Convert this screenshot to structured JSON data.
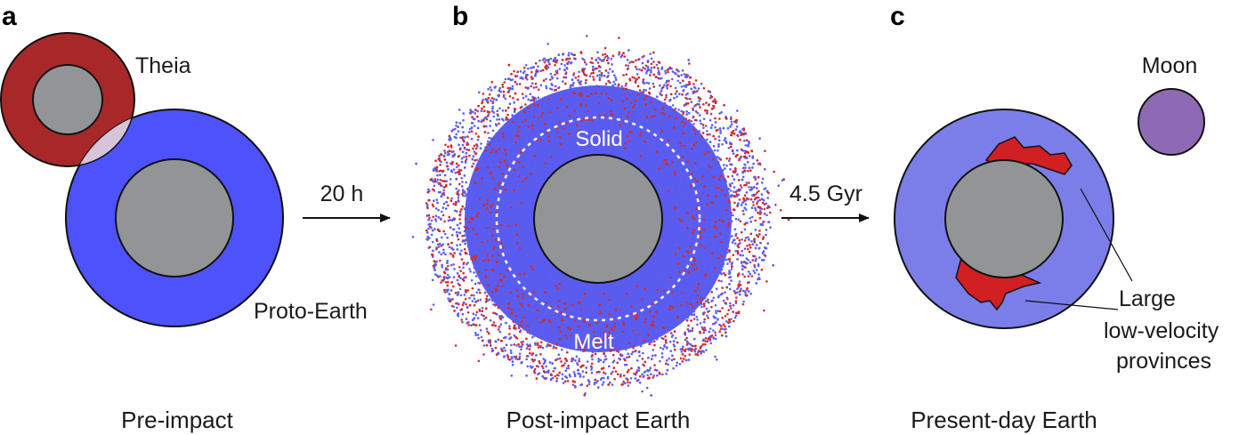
{
  "panels": {
    "a": {
      "letter": "a",
      "caption": "Pre-impact",
      "impactor_label": "Theia",
      "target_label": "Proto-Earth"
    },
    "b": {
      "letter": "b",
      "caption": "Post-impact Earth",
      "inner_label": "Solid",
      "outer_label": "Melt"
    },
    "c": {
      "letter": "c",
      "caption": "Present-day Earth",
      "moon_label": "Moon",
      "llvp_label_lines": [
        "Large",
        "low-velocity",
        "provinces"
      ]
    }
  },
  "arrows": {
    "ab": "20 h",
    "bc": "4.5 Gyr"
  },
  "colors": {
    "theia_mantle": "#a8282a",
    "proto_earth_mantle": "#4e52fb",
    "core": "#939496",
    "overlap": "#e8d0d6",
    "post_impact_mantle": "#5a5cf0",
    "particle_red": "#d42a2a",
    "particle_blue": "#5b5ff5",
    "present_mantle": "#7b7ee8",
    "llvp": "#d21f24",
    "moon": "#8f6ab4"
  }
}
